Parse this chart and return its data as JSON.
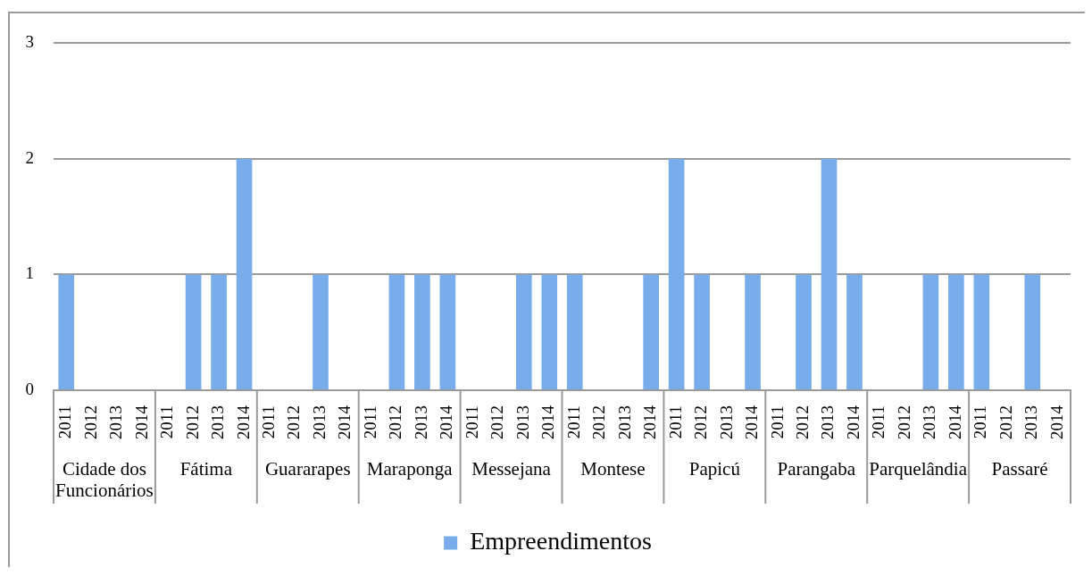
{
  "chart_data": {
    "type": "bar",
    "categories": [
      "2011",
      "2012",
      "2013",
      "2014",
      "2011",
      "2012",
      "2013",
      "2014",
      "2011",
      "2012",
      "2013",
      "2014",
      "2011",
      "2012",
      "2013",
      "2014",
      "2011",
      "2012",
      "2013",
      "2014",
      "2011",
      "2012",
      "2013",
      "2014",
      "2011",
      "2012",
      "2013",
      "2014",
      "2011",
      "2012",
      "2013",
      "2014",
      "2011",
      "2012",
      "2013",
      "2014",
      "2011",
      "2012",
      "2013",
      "2014"
    ],
    "series": [
      {
        "name": "Empreendimentos",
        "color": "#78acea",
        "values": [
          1,
          0,
          0,
          0,
          0,
          1,
          1,
          2,
          0,
          0,
          1,
          0,
          0,
          1,
          1,
          1,
          0,
          0,
          1,
          1,
          1,
          0,
          0,
          1,
          2,
          1,
          0,
          1,
          0,
          1,
          2,
          1,
          0,
          0,
          1,
          1,
          1,
          0,
          1,
          0
        ]
      }
    ],
    "ylim": [
      0,
      3
    ],
    "yticks": [
      0,
      1,
      2,
      3
    ],
    "grid": "y",
    "legend": "bottom",
    "annotations": [
      "Cidade dos Funcionários",
      "Fátima",
      "Guararapes",
      "Maraponga",
      "Messejana",
      "Montese",
      "Papicú",
      "Parangaba",
      "Parquelândia",
      "Passaré"
    ]
  }
}
